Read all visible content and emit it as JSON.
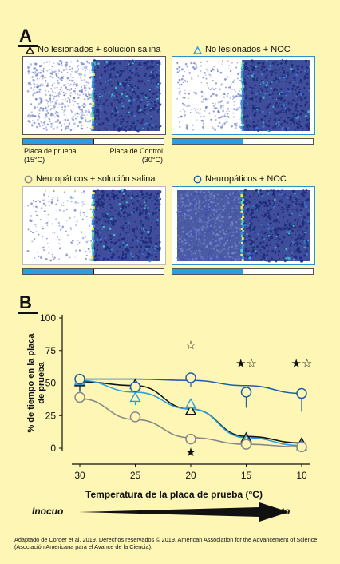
{
  "panel_a": {
    "letter": "A",
    "conditions": [
      {
        "symbol": "triangle",
        "color": "#111111",
        "label": "No lesionados + solución salina"
      },
      {
        "symbol": "triangle",
        "color": "#2b9ee0",
        "label": "No lesionados + NOC"
      },
      {
        "symbol": "circle",
        "color": "#888888",
        "label": "Neuropáticos + solución salina"
      },
      {
        "symbol": "circle",
        "color": "#1f5fa8",
        "label": "Neuropáticos + NOC"
      }
    ],
    "plate_test": {
      "line1": "Placa de prueba",
      "line2": "(15°C)"
    },
    "plate_control": {
      "line1": "Placa de Control",
      "line2": "(30°C)"
    }
  },
  "panel_b": {
    "letter": "B",
    "arrow_left": "Inocuo",
    "arrow_right": "Molesto"
  },
  "chart_data": {
    "type": "line",
    "xlabel": "Temperatura de la placa de prueba (°C)",
    "ylabel": "% de tiempo en la placa de prueba",
    "x": [
      30,
      25,
      20,
      15,
      10
    ],
    "x_ticks": [
      "30",
      "25",
      "20",
      "15",
      "10"
    ],
    "y_ticks": [
      "0",
      "25",
      "50",
      "75",
      "100"
    ],
    "ylim": [
      0,
      100
    ],
    "reference_line": 50,
    "series": [
      {
        "name": "No lesionados + solución salina",
        "marker": "triangle",
        "color": "#111111",
        "values": [
          51,
          49,
          29,
          8,
          4
        ]
      },
      {
        "name": "No lesionados + NOC",
        "marker": "triangle",
        "color": "#2b9ee0",
        "values": [
          52,
          39,
          34,
          6,
          2
        ]
      },
      {
        "name": "Neuropáticos + solución salina",
        "marker": "circle",
        "color": "#888888",
        "values": [
          39,
          24,
          7,
          3,
          1
        ]
      },
      {
        "name": "Neuropáticos + NOC",
        "marker": "circle",
        "color": "#1f5fa8",
        "values": [
          53,
          47,
          54,
          43,
          42
        ]
      }
    ],
    "annotations": [
      {
        "x": 20,
        "symbol": "★",
        "position": "below"
      },
      {
        "x": 20,
        "symbol": "☆",
        "position": "above"
      },
      {
        "x": 15,
        "symbol": "★☆",
        "position": "above"
      },
      {
        "x": 10,
        "symbol": "★☆",
        "position": "above"
      }
    ]
  },
  "footer": "Adaptado de Corder et al. 2019. Derechos reservados © 2019, American Association for the Advancement of Science (Asociación Americana para el Avance de la Ciencia)."
}
